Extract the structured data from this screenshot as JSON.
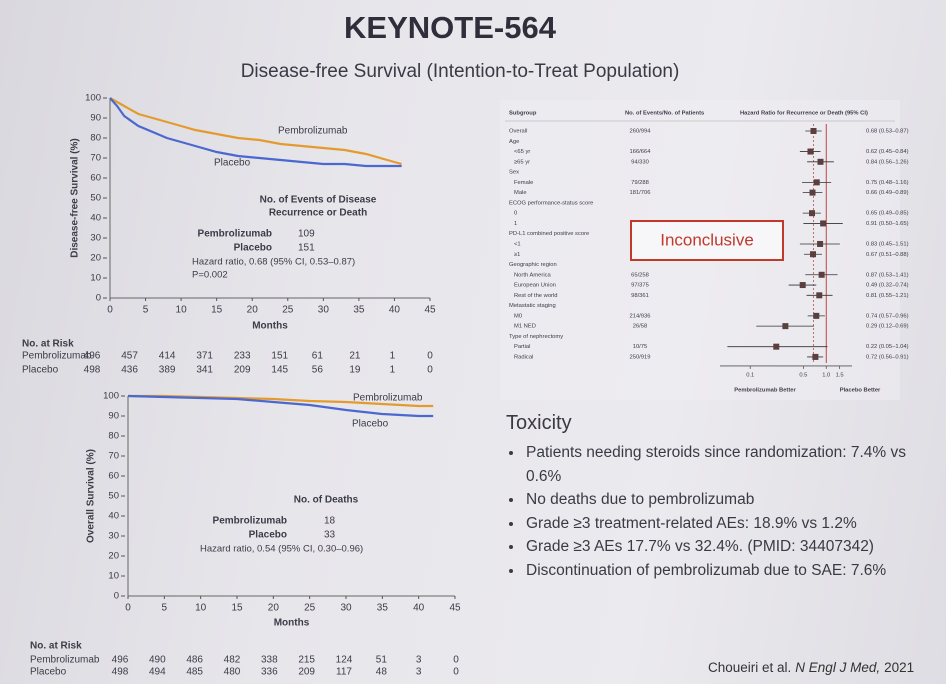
{
  "title": "KEYNOTE-564",
  "subtitle": "Disease-free Survival (Intention-to-Treat Population)",
  "chart_data": [
    {
      "type": "line",
      "ylabel": "Disease-free Survival (%)",
      "xlabel": "Months",
      "x": [
        0,
        1,
        2,
        4,
        6,
        8,
        10,
        12,
        15,
        18,
        21,
        24,
        27,
        30,
        33,
        36,
        39,
        41
      ],
      "series": [
        {
          "name": "Pembrolizumab",
          "color": "#e49b2e",
          "values": [
            100,
            98,
            96,
            92,
            90,
            88,
            86,
            84,
            82,
            80,
            79,
            77,
            76,
            75,
            74,
            72,
            69,
            67
          ]
        },
        {
          "name": "Placebo",
          "color": "#4a68cf",
          "values": [
            100,
            96,
            91,
            86,
            83,
            80,
            78,
            76,
            73,
            71,
            70,
            69,
            68,
            67,
            67,
            66,
            66,
            66
          ]
        }
      ],
      "xlim": [
        0,
        45
      ],
      "xticks": [
        0,
        5,
        10,
        15,
        20,
        25,
        30,
        35,
        40,
        45
      ],
      "ylim": [
        0,
        100
      ],
      "yticks": [
        0,
        10,
        20,
        30,
        40,
        50,
        60,
        70,
        80,
        90,
        100
      ],
      "events_table": {
        "heading": [
          "No. of Events of Disease",
          "Recurrence or Death"
        ],
        "rows": [
          {
            "label": "Pembrolizumab",
            "value": 109
          },
          {
            "label": "Placebo",
            "value": 151
          }
        ],
        "notes": [
          "Hazard ratio, 0.68 (95% CI, 0.53–0.87)",
          "P=0.002"
        ]
      },
      "risk_table": {
        "title": "No. at Risk",
        "rows": [
          {
            "label": "Pembrolizumab",
            "values": [
              496,
              457,
              414,
              371,
              233,
              151,
              61,
              21,
              1,
              0
            ]
          },
          {
            "label": "Placebo",
            "values": [
              498,
              436,
              389,
              341,
              209,
              145,
              56,
              19,
              1,
              0
            ]
          }
        ]
      }
    },
    {
      "type": "line",
      "ylabel": "Overall Survival (%)",
      "xlabel": "Months",
      "x": [
        0,
        5,
        10,
        15,
        20,
        25,
        30,
        35,
        40,
        42
      ],
      "series": [
        {
          "name": "Pembrolizumab",
          "color": "#e49b2e",
          "values": [
            100,
            100,
            99.5,
            99,
            98.5,
            97.5,
            97,
            96,
            95,
            95
          ]
        },
        {
          "name": "Placebo",
          "color": "#4a68cf",
          "values": [
            100,
            99.5,
            99,
            98.5,
            97,
            95.5,
            93,
            91,
            90,
            90
          ]
        }
      ],
      "xlim": [
        0,
        45
      ],
      "xticks": [
        0,
        5,
        10,
        15,
        20,
        25,
        30,
        35,
        40,
        45
      ],
      "ylim": [
        0,
        100
      ],
      "yticks": [
        0,
        10,
        20,
        30,
        40,
        50,
        60,
        70,
        80,
        90,
        100
      ],
      "events_table": {
        "heading": [
          "No. of Deaths"
        ],
        "rows": [
          {
            "label": "Pembrolizumab",
            "value": 18
          },
          {
            "label": "Placebo",
            "value": 33
          }
        ],
        "notes": [
          "Hazard ratio, 0.54 (95% CI, 0.30–0.96)"
        ]
      },
      "risk_table": {
        "title": "No. at Risk",
        "rows": [
          {
            "label": "Pembrolizumab",
            "values": [
              496,
              490,
              486,
              482,
              338,
              215,
              124,
              51,
              3,
              0
            ]
          },
          {
            "label": "Placebo",
            "values": [
              498,
              494,
              485,
              480,
              336,
              209,
              117,
              48,
              3,
              0
            ]
          }
        ]
      }
    },
    {
      "type": "forest",
      "headers": {
        "subgroup": "Subgroup",
        "events": "No. of Events/No. of Patients",
        "ratio": "Hazard Ratio for Recurrence or Death (95% CI)"
      },
      "categories": [
        "Overall",
        "Age",
        "<65 yr",
        "≥65 yr",
        "Sex",
        "Female",
        "Male",
        "ECOG performance-status score",
        "0",
        "1",
        "PD-L1 combined positive score",
        "<1",
        "≥1",
        "Geographic region",
        "North America",
        "European Union",
        "Rest of the world",
        "Metastatic staging",
        "M0",
        "M1 NED",
        "Type of nephrectomy",
        "Partial",
        "Radical"
      ],
      "events": [
        "260/994",
        null,
        "166/664",
        "94/330",
        null,
        "79/288",
        "181/706",
        null,
        null,
        null,
        null,
        null,
        null,
        null,
        "65/258",
        "97/375",
        "98/361",
        null,
        "214/936",
        "26/58",
        null,
        "10/75",
        "250/919"
      ],
      "values": [
        0.68,
        null,
        0.62,
        0.84,
        null,
        0.75,
        0.66,
        null,
        0.65,
        0.91,
        null,
        0.83,
        0.67,
        null,
        0.87,
        0.49,
        0.81,
        null,
        0.74,
        0.29,
        null,
        0.22,
        0.72
      ],
      "low": [
        0.53,
        null,
        0.45,
        0.56,
        null,
        0.48,
        0.49,
        null,
        0.49,
        0.5,
        null,
        0.45,
        0.51,
        null,
        0.53,
        0.32,
        0.55,
        null,
        0.57,
        0.12,
        null,
        0.05,
        0.56
      ],
      "high": [
        0.87,
        null,
        0.84,
        1.26,
        null,
        1.16,
        0.89,
        null,
        0.85,
        1.65,
        null,
        1.51,
        0.88,
        null,
        1.41,
        0.74,
        1.21,
        null,
        0.96,
        0.69,
        null,
        1.04,
        0.91
      ],
      "value_labels": [
        "0.68 (0.53–0.87)",
        null,
        "0.62 (0.45–0.84)",
        "0.84 (0.56–1.26)",
        null,
        "0.75 (0.48–1.16)",
        "0.66 (0.49–0.89)",
        null,
        "0.65 (0.49–0.85)",
        "0.91 (0.50–1.65)",
        null,
        "0.83 (0.45–1.51)",
        "0.67 (0.51–0.88)",
        null,
        "0.87 (0.53–1.41)",
        "0.49 (0.32–0.74)",
        "0.81 (0.55–1.21)",
        null,
        "0.74 (0.57–0.96)",
        "0.29 (0.12–0.69)",
        null,
        "0.22 (0.05–1.04)",
        "0.72 (0.56–0.91)"
      ],
      "xlim": [
        0.04,
        4
      ],
      "log_scale": true,
      "reference_line": 1,
      "xticks": [
        0.1,
        0.5,
        {
          "value": 1,
          "label": "1.0"
        },
        1.5
      ],
      "direction_labels": [
        "Pembrolizumab Better",
        "Placebo Better"
      ],
      "color": "#5b3f3f",
      "annotation": "Inconclusive"
    }
  ],
  "toxicity": {
    "heading": "Toxicity",
    "bullets": [
      "Patients needing steroids since randomization: 7.4% vs 0.6%",
      "No deaths due to pembrolizumab",
      "Grade ≥3 treatment-related AEs: 18.9% vs 1.2%",
      "Grade ≥3 AEs 17.7% vs 32.4%. (PMID: 34407342)",
      "Discontinuation of pembrolizumab due to SAE: 7.6%"
    ]
  },
  "citation": {
    "authors": "Choueiri et al.",
    "journal": "N Engl J Med,",
    "year": "2021"
  }
}
